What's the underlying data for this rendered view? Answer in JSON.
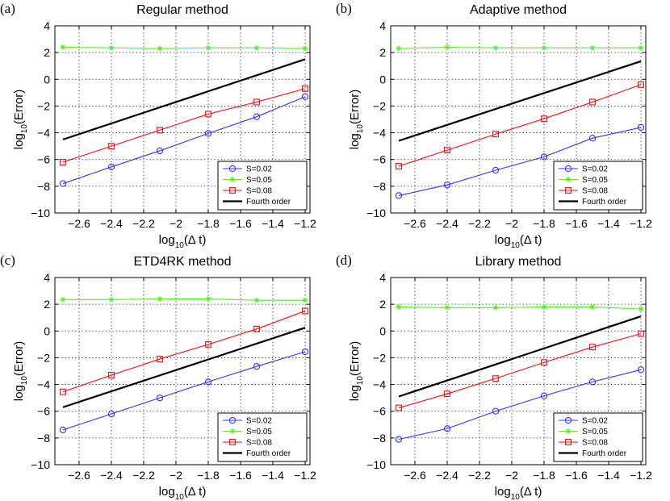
{
  "chart_data": [
    {
      "type": "line",
      "panel": "(a)",
      "title": "Regular method",
      "x": [
        -2.7,
        -2.4,
        -2.1,
        -1.8,
        -1.5,
        -1.2
      ],
      "xlabel": {
        "base": "log",
        "sub": "10",
        "rest": "(Δ t)"
      },
      "ylabel": {
        "base": "log",
        "sub": "10",
        "rest": "(Error)"
      },
      "xlim": [
        -2.75,
        -1.17
      ],
      "ylim": [
        -10,
        4
      ],
      "xticks": [
        -2.6,
        -2.4,
        -2.2,
        -2.0,
        -1.8,
        -1.6,
        -1.4,
        -1.2
      ],
      "xtick_labels": [
        "−2.6",
        "−2.4",
        "−2.2",
        "−2",
        "−1.8",
        "−1.6",
        "−1.4",
        "−1.2"
      ],
      "yticks": [
        -10,
        -8,
        -6,
        -4,
        -2,
        0,
        2,
        4
      ],
      "ytick_labels": [
        "−10",
        "−8",
        "−6",
        "−4",
        "−2",
        "0",
        "2",
        "4"
      ],
      "grid": true,
      "legend_position": "bottom-right",
      "series": [
        {
          "name": "S=0.02",
          "color": "#3333ff",
          "marker": "circle",
          "values": [
            -7.8,
            -6.55,
            -5.35,
            -4.05,
            -2.8,
            -1.3
          ]
        },
        {
          "name": "S=0.05",
          "color": "#55ee22",
          "marker": "star",
          "values": [
            2.4,
            2.35,
            2.3,
            2.35,
            2.35,
            2.3
          ]
        },
        {
          "name": "S=0.08",
          "color": "#ee1111",
          "marker": "square",
          "values": [
            -6.2,
            -5.0,
            -3.8,
            -2.6,
            -1.7,
            -0.7
          ]
        },
        {
          "name": "Fourth order",
          "color": "#000000",
          "marker": "none",
          "values": [
            -4.5,
            null,
            null,
            null,
            null,
            1.5
          ]
        }
      ]
    },
    {
      "type": "line",
      "panel": "(b)",
      "title": "Adaptive method",
      "x": [
        -2.7,
        -2.4,
        -2.1,
        -1.8,
        -1.5,
        -1.2
      ],
      "xlabel": {
        "base": "log",
        "sub": "10",
        "rest": "(Δ t)"
      },
      "ylabel": {
        "base": "log",
        "sub": "10",
        "rest": "(Error)"
      },
      "xlim": [
        -2.75,
        -1.17
      ],
      "ylim": [
        -10,
        4
      ],
      "xticks": [
        -2.6,
        -2.4,
        -2.2,
        -2.0,
        -1.8,
        -1.6,
        -1.4,
        -1.2
      ],
      "xtick_labels": [
        "−2.6",
        "−2.4",
        "−2.2",
        "−2",
        "−1.8",
        "−1.6",
        "−1.4",
        "−1.2"
      ],
      "yticks": [
        -10,
        -8,
        -6,
        -4,
        -2,
        0,
        2,
        4
      ],
      "ytick_labels": [
        "−10",
        "−8",
        "−6",
        "−4",
        "−2",
        "0",
        "2",
        "4"
      ],
      "grid": true,
      "legend_position": "bottom-right",
      "series": [
        {
          "name": "S=0.02",
          "color": "#3333ff",
          "marker": "circle",
          "values": [
            -8.7,
            -7.9,
            -6.8,
            -5.8,
            -4.4,
            -3.6
          ]
        },
        {
          "name": "S=0.05",
          "color": "#55ee22",
          "marker": "star",
          "values": [
            2.3,
            2.4,
            2.35,
            2.35,
            2.35,
            2.35
          ]
        },
        {
          "name": "S=0.08",
          "color": "#ee1111",
          "marker": "square",
          "values": [
            -6.5,
            -5.3,
            -4.1,
            -2.95,
            -1.7,
            -0.4
          ]
        },
        {
          "name": "Fourth order",
          "color": "#000000",
          "marker": "none",
          "values": [
            -4.6,
            null,
            null,
            null,
            null,
            1.35
          ]
        }
      ]
    },
    {
      "type": "line",
      "panel": "(c)",
      "title": "ETD4RK method",
      "x": [
        -2.7,
        -2.4,
        -2.1,
        -1.8,
        -1.5,
        -1.2
      ],
      "xlabel": {
        "base": "log",
        "sub": "10",
        "rest": "(Δ t)"
      },
      "ylabel": {
        "base": "log",
        "sub": "10",
        "rest": "(Error)"
      },
      "xlim": [
        -2.75,
        -1.17
      ],
      "ylim": [
        -10,
        4
      ],
      "xticks": [
        -2.6,
        -2.4,
        -2.2,
        -2.0,
        -1.8,
        -1.6,
        -1.4,
        -1.2
      ],
      "xtick_labels": [
        "−2.6",
        "−2.4",
        "−2.2",
        "−2",
        "−1.8",
        "−1.6",
        "−1.4",
        "−1.2"
      ],
      "yticks": [
        -10,
        -8,
        -6,
        -4,
        -2,
        0,
        2,
        4
      ],
      "ytick_labels": [
        "−10",
        "−8",
        "−6",
        "−4",
        "−2",
        "0",
        "2",
        "4"
      ],
      "grid": true,
      "legend_position": "bottom-right",
      "series": [
        {
          "name": "S=0.02",
          "color": "#3333ff",
          "marker": "circle",
          "values": [
            -7.4,
            -6.2,
            -5.0,
            -3.8,
            -2.65,
            -1.55
          ]
        },
        {
          "name": "S=0.05",
          "color": "#55ee22",
          "marker": "star",
          "values": [
            2.35,
            2.35,
            2.4,
            2.4,
            2.3,
            2.3
          ]
        },
        {
          "name": "S=0.08",
          "color": "#ee1111",
          "marker": "square",
          "values": [
            -4.55,
            -3.3,
            -2.1,
            -1.0,
            0.15,
            1.5
          ]
        },
        {
          "name": "Fourth order",
          "color": "#000000",
          "marker": "none",
          "values": [
            -5.7,
            null,
            null,
            null,
            null,
            0.25
          ]
        }
      ]
    },
    {
      "type": "line",
      "panel": "(d)",
      "title": "Library method",
      "x": [
        -2.7,
        -2.4,
        -2.1,
        -1.8,
        -1.5,
        -1.2
      ],
      "xlabel": {
        "base": "log",
        "sub": "10",
        "rest": "(Δ t)"
      },
      "ylabel": {
        "base": "log",
        "sub": "10",
        "rest": "(Error)"
      },
      "xlim": [
        -2.75,
        -1.17
      ],
      "ylim": [
        -10,
        4
      ],
      "xticks": [
        -2.6,
        -2.4,
        -2.2,
        -2.0,
        -1.8,
        -1.6,
        -1.4,
        -1.2
      ],
      "xtick_labels": [
        "−2.6",
        "−2.4",
        "−2.2",
        "−2",
        "−1.8",
        "−1.6",
        "−1.4",
        "−1.2"
      ],
      "yticks": [
        -10,
        -8,
        -6,
        -4,
        -2,
        0,
        2,
        4
      ],
      "ytick_labels": [
        "−10",
        "−8",
        "−6",
        "−4",
        "−2",
        "0",
        "2",
        "4"
      ],
      "grid": true,
      "legend_position": "bottom-right",
      "series": [
        {
          "name": "S=0.02",
          "color": "#3333ff",
          "marker": "circle",
          "values": [
            -8.1,
            -7.3,
            -6.0,
            -4.85,
            -3.8,
            -2.9
          ]
        },
        {
          "name": "S=0.05",
          "color": "#55ee22",
          "marker": "star",
          "values": [
            1.8,
            1.75,
            1.75,
            1.8,
            1.8,
            1.65
          ]
        },
        {
          "name": "S=0.08",
          "color": "#ee1111",
          "marker": "square",
          "values": [
            -5.75,
            -4.7,
            -3.55,
            -2.35,
            -1.2,
            -0.2
          ]
        },
        {
          "name": "Fourth order",
          "color": "#000000",
          "marker": "none",
          "values": [
            -4.9,
            null,
            null,
            null,
            null,
            1.1
          ]
        }
      ]
    }
  ]
}
